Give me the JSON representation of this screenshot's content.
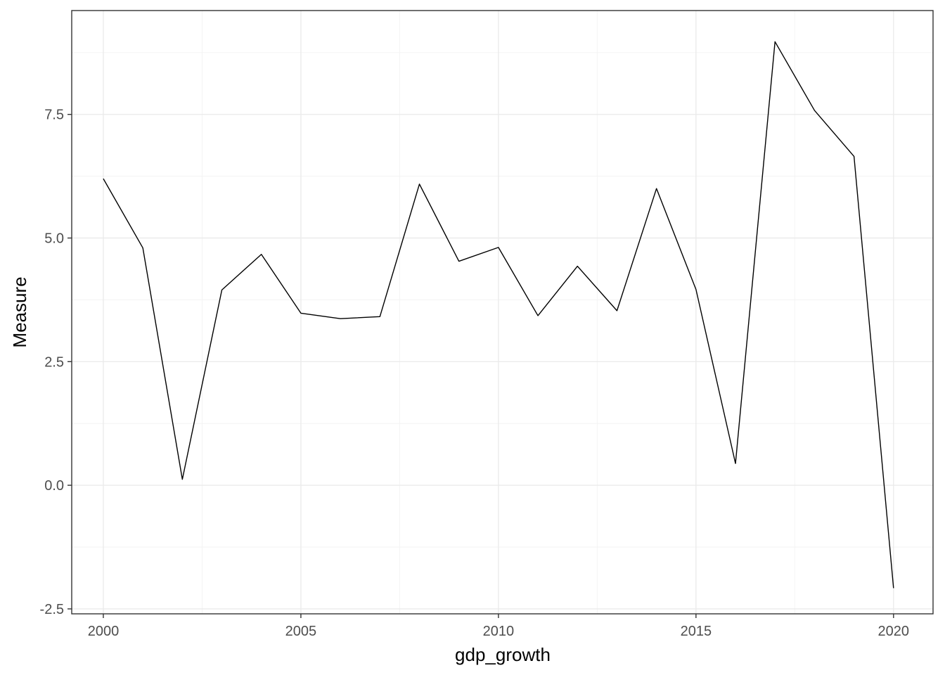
{
  "chart_data": {
    "type": "line",
    "title": "",
    "xlabel": "gdp_growth",
    "ylabel": "Measure",
    "x": [
      2000,
      2001,
      2002,
      2003,
      2004,
      2005,
      2006,
      2007,
      2008,
      2009,
      2010,
      2011,
      2012,
      2013,
      2014,
      2015,
      2016,
      2017,
      2018,
      2019,
      2020
    ],
    "series": [
      {
        "values": [
          6.2,
          4.8,
          0.12,
          3.95,
          4.67,
          3.48,
          3.37,
          3.41,
          6.09,
          4.53,
          4.81,
          3.43,
          4.43,
          3.53,
          6.0,
          3.96,
          0.44,
          8.97,
          7.58,
          6.65,
          -2.08
        ],
        "color": "#000000"
      }
    ],
    "xlim": [
      1999.2,
      2021.0
    ],
    "ylim": [
      -2.6,
      9.6
    ],
    "x_ticks": [
      2000,
      2005,
      2010,
      2015,
      2020
    ],
    "x_tick_labels": [
      "2000",
      "2005",
      "2010",
      "2015",
      "2020"
    ],
    "y_ticks": [
      -2.5,
      0,
      2.5,
      5,
      7.5
    ],
    "y_tick_labels": [
      "-2.5",
      "0.0",
      "2.5",
      "5.0",
      "7.5"
    ],
    "grid": true,
    "legend": "none"
  }
}
